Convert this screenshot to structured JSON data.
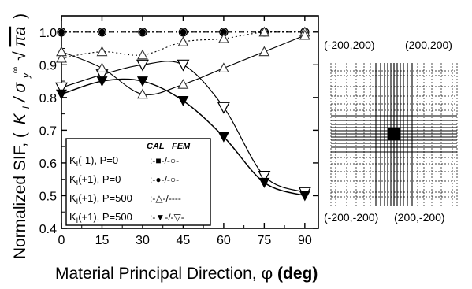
{
  "chart_data": {
    "type": "line",
    "xlabel": "Material Principal Direction, φ (deg)",
    "xlabel_main": "Material Principal Direction, ",
    "xlabel_symbol": "φ",
    "xlabel_unit": " (deg)",
    "ylabel": "Normalized SIF, ( K_I / σ_y^∞ √(πa) )",
    "ylabel_main": "Normalized SIF, (",
    "ylabel_k": "K",
    "ylabel_ksub": "I",
    "ylabel_slash": " / σ",
    "ylabel_sigsub": "y",
    "ylabel_sigsup": "∞",
    "ylabel_root": "√",
    "ylabel_pia": "πa",
    "ylabel_close": ")",
    "xlim": [
      0,
      95
    ],
    "ylim": [
      0.4,
      1.05
    ],
    "xticks": [
      0,
      15,
      30,
      45,
      60,
      75,
      90
    ],
    "xtick_labels": [
      "0",
      "15",
      "30",
      "45",
      "60",
      "75",
      "90"
    ],
    "yticks": [
      0.4,
      0.5,
      0.6,
      0.7,
      0.8,
      0.9,
      1.0
    ],
    "ytick_labels": [
      "0.4",
      "0.5",
      "0.6",
      "0.7",
      "0.8",
      "0.9",
      "1.0"
    ],
    "legend_header_cal": "CAL",
    "legend_header_fem": "FEM",
    "legend_placement": "bottom-left",
    "series": [
      {
        "name": "K_I(-1), P=0",
        "label": "K",
        "label_sub": "I",
        "label_rest": "(-1),  P=0",
        "legend_key": ":-■-/-○-",
        "line_style": "dash-dot",
        "cal_marker": "filled-square",
        "fem_marker": "open-circle",
        "x": [
          0,
          15,
          30,
          45,
          60,
          75,
          90
        ],
        "cal": [
          1.0,
          1.0,
          1.0,
          1.0,
          1.0,
          1.0,
          1.0
        ],
        "fem": [
          1.0,
          1.0,
          1.0,
          1.0,
          1.0,
          1.0,
          1.0
        ]
      },
      {
        "name": "K_I(+1), P=0",
        "label": "K",
        "label_sub": "I",
        "label_rest": "(+1),  P=0",
        "legend_key": ":-●-/-○-",
        "line_style": "dotted",
        "cal_marker": "filled-circle",
        "fem_marker": "open-circle",
        "x": [
          0,
          15,
          30,
          45,
          60,
          75,
          90
        ],
        "cal": [
          1.0,
          1.0,
          1.0,
          1.0,
          1.0,
          1.0,
          1.0
        ],
        "fem": [
          1.0,
          1.0,
          1.0,
          1.0,
          1.0,
          1.0,
          1.0
        ]
      },
      {
        "name": "K_I(+1), P=500",
        "label": "K",
        "label_sub": "I",
        "label_rest": "(+1), P=500",
        "legend_key": ":-△-/----",
        "line_style": "dotted",
        "cal_marker": "open-triangle-up",
        "fem_marker": "none",
        "x": [
          0,
          15,
          30,
          45,
          60,
          75,
          90
        ],
        "cal": [
          0.92,
          0.94,
          0.93,
          0.97,
          0.98,
          1.0,
          1.0
        ],
        "fem": [
          0.92,
          0.94,
          0.93,
          0.97,
          0.98,
          1.0,
          1.0
        ]
      },
      {
        "name": "K_I(+1), P=500 (lower)",
        "label": "K",
        "label_sub": "I",
        "label_rest": "(+1), P=500",
        "legend_key": ":-▼-/-▽-",
        "line_style": "solid",
        "cal_marker": "filled-triangle-down",
        "fem_marker": "open-triangle-down",
        "x": [
          0,
          15,
          30,
          45,
          60,
          75,
          90
        ],
        "cal": [
          0.81,
          0.85,
          0.85,
          0.79,
          0.68,
          0.54,
          0.5
        ],
        "fem": [
          0.83,
          0.87,
          0.9,
          0.9,
          0.77,
          0.56,
          0.51
        ]
      }
    ],
    "extra_curves": [
      {
        "description": "solid curve through open triangles (up)",
        "x": [
          0,
          15,
          30,
          45,
          60,
          75,
          90
        ],
        "y": [
          0.94,
          0.89,
          0.81,
          0.84,
          0.89,
          0.94,
          0.99
        ]
      }
    ]
  },
  "mesh_panel": {
    "corner_top_left": "(-200,200)",
    "corner_top_right": "(200,200)",
    "corner_bottom_left": "(-200,-200)",
    "corner_bottom_right": "(200,-200)"
  }
}
